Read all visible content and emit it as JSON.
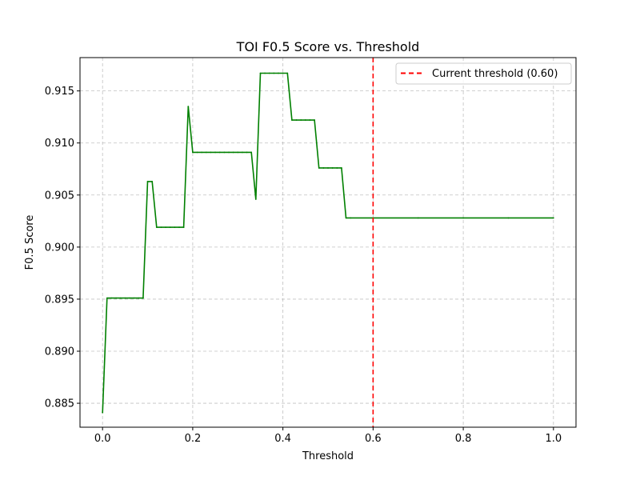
{
  "chart_data": {
    "type": "line",
    "title": "TOI F0.5 Score vs. Threshold",
    "xlabel": "Threshold",
    "ylabel": "F0.5 Score",
    "xlim": [
      -0.05,
      1.05
    ],
    "ylim": [
      0.8827,
      0.9182
    ],
    "xticks": [
      0.0,
      0.2,
      0.4,
      0.6,
      0.8,
      1.0
    ],
    "xtick_labels": [
      "0.0",
      "0.2",
      "0.4",
      "0.6",
      "0.8",
      "1.0"
    ],
    "yticks": [
      0.885,
      0.89,
      0.895,
      0.9,
      0.905,
      0.91,
      0.915
    ],
    "ytick_labels": [
      "0.885",
      "0.890",
      "0.895",
      "0.900",
      "0.905",
      "0.910",
      "0.915"
    ],
    "grid": true,
    "legend_position": "top-right",
    "series": [
      {
        "color": "#008000",
        "style": "solid",
        "x": [
          0.0,
          0.01,
          0.02,
          0.03,
          0.04,
          0.05,
          0.06,
          0.07,
          0.08,
          0.09,
          0.1,
          0.11,
          0.12,
          0.13,
          0.14,
          0.15,
          0.16,
          0.17,
          0.18,
          0.19,
          0.2,
          0.21,
          0.22,
          0.23,
          0.24,
          0.25,
          0.26,
          0.27,
          0.28,
          0.29,
          0.3,
          0.31,
          0.32,
          0.33,
          0.34,
          0.35,
          0.36,
          0.37,
          0.38,
          0.39,
          0.4,
          0.41,
          0.42,
          0.43,
          0.44,
          0.45,
          0.46,
          0.47,
          0.48,
          0.49,
          0.5,
          0.51,
          0.52,
          0.53,
          0.54,
          0.55,
          0.6,
          0.7,
          0.8,
          0.9,
          1.0
        ],
        "values": [
          0.8841,
          0.8951,
          0.8951,
          0.8951,
          0.8951,
          0.8951,
          0.8951,
          0.8951,
          0.8951,
          0.8951,
          0.9063,
          0.9063,
          0.9019,
          0.9019,
          0.9019,
          0.9019,
          0.9019,
          0.9019,
          0.9019,
          0.9135,
          0.9091,
          0.9091,
          0.9091,
          0.9091,
          0.9091,
          0.9091,
          0.9091,
          0.9091,
          0.9091,
          0.9091,
          0.9091,
          0.9091,
          0.9091,
          0.9091,
          0.9046,
          0.9167,
          0.9167,
          0.9167,
          0.9167,
          0.9167,
          0.9167,
          0.9167,
          0.9122,
          0.9122,
          0.9122,
          0.9122,
          0.9122,
          0.9122,
          0.9076,
          0.9076,
          0.9076,
          0.9076,
          0.9076,
          0.9076,
          0.9028,
          0.9028,
          0.9028,
          0.9028,
          0.9028,
          0.9028,
          0.9028
        ]
      }
    ],
    "reference_lines": [
      {
        "orientation": "vertical",
        "x": 0.6,
        "name": "Current threshold (0.60)",
        "color": "#ff0000",
        "style": "dashed"
      }
    ]
  }
}
